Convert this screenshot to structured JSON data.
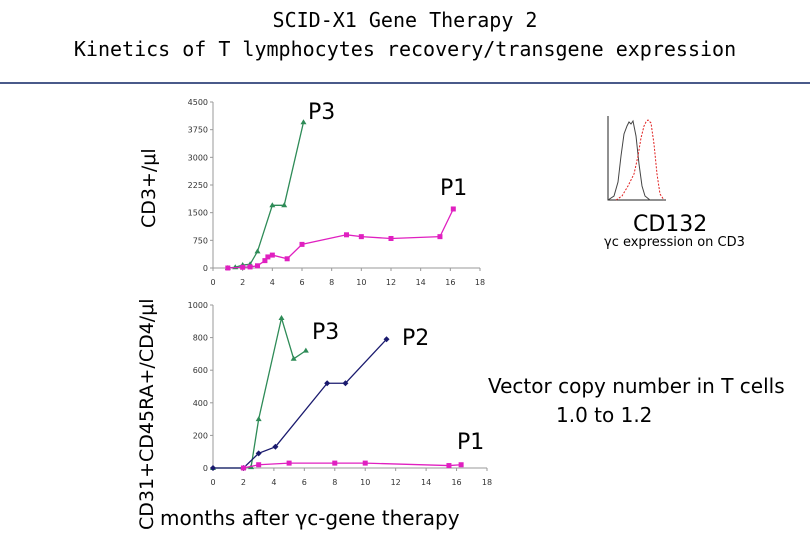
{
  "title_line1": "SCID-X1 Gene Therapy 2",
  "title_line2": "Kinetics of T lymphocytes recovery/transgene expression",
  "colors": {
    "green": "#2e8b57",
    "magenta": "#e020c0",
    "navy": "#1a1a6e",
    "rule": "#4a5a8a",
    "hist_grey": "#444444",
    "hist_red": "#e02020"
  },
  "labels": {
    "top_ylabel": "CD3+/μl",
    "bottom_ylabel": "CD31+CD45RA+/CD4/μl",
    "xlabel": "months after γc-gene therapy",
    "cd132": "CD132",
    "gc_expression": "γc expression on CD3",
    "vector_line1": "Vector copy number in T cells",
    "vector_line2": "1.0 to 1.2"
  },
  "chart_data": [
    {
      "type": "line",
      "id": "top",
      "ylabel": "CD3+/μl",
      "xlim": [
        0,
        18
      ],
      "ylim": [
        0,
        4500
      ],
      "xticks": [
        0,
        2,
        4,
        6,
        8,
        10,
        12,
        14,
        16,
        18
      ],
      "yticks": [
        0,
        750,
        1500,
        2250,
        3000,
        3750,
        4500
      ],
      "series": [
        {
          "name": "P3",
          "color": "#2e8b57",
          "marker": "triangle",
          "x": [
            1,
            1.5,
            2,
            2.5,
            3,
            4,
            4.8,
            6.1
          ],
          "y": [
            0,
            20,
            80,
            100,
            450,
            1700,
            1700,
            3950
          ]
        },
        {
          "name": "P1",
          "color": "#e020c0",
          "marker": "square",
          "x": [
            1,
            2,
            2.5,
            3,
            3.5,
            3.7,
            4,
            5,
            6,
            9,
            10,
            12,
            15.3,
            16.2
          ],
          "y": [
            0,
            20,
            30,
            60,
            200,
            300,
            350,
            250,
            640,
            900,
            850,
            800,
            850,
            1600
          ]
        }
      ],
      "annotations": [
        {
          "text": "P3",
          "series": "P3"
        },
        {
          "text": "P1",
          "series": "P1"
        }
      ]
    },
    {
      "type": "line",
      "id": "bottom",
      "ylabel": "CD31+CD45RA+/CD4/μl",
      "xlim": [
        0,
        18
      ],
      "ylim": [
        0,
        1000
      ],
      "xticks": [
        0,
        2,
        4,
        6,
        8,
        10,
        12,
        14,
        16,
        18
      ],
      "yticks": [
        0,
        200,
        400,
        600,
        800,
        1000
      ],
      "series": [
        {
          "name": "P3",
          "color": "#2e8b57",
          "marker": "triangle",
          "x": [
            0,
            2,
            2.5,
            3,
            4.5,
            5.3,
            6.1
          ],
          "y": [
            0,
            0,
            5,
            300,
            920,
            670,
            720
          ]
        },
        {
          "name": "P2",
          "color": "#1a1a6e",
          "marker": "diamond",
          "x": [
            0,
            2,
            3,
            4.1,
            7.5,
            8.7,
            11.4
          ],
          "y": [
            0,
            0,
            90,
            130,
            520,
            520,
            790
          ]
        },
        {
          "name": "P1",
          "color": "#e020c0",
          "marker": "square",
          "x": [
            2,
            3,
            5,
            8,
            10,
            15.5,
            16.3
          ],
          "y": [
            0,
            20,
            30,
            30,
            30,
            15,
            20
          ]
        }
      ],
      "annotations": [
        {
          "text": "P3",
          "series": "P3"
        },
        {
          "text": "P2",
          "series": "P2"
        },
        {
          "text": "P1",
          "series": "P1"
        }
      ]
    }
  ]
}
